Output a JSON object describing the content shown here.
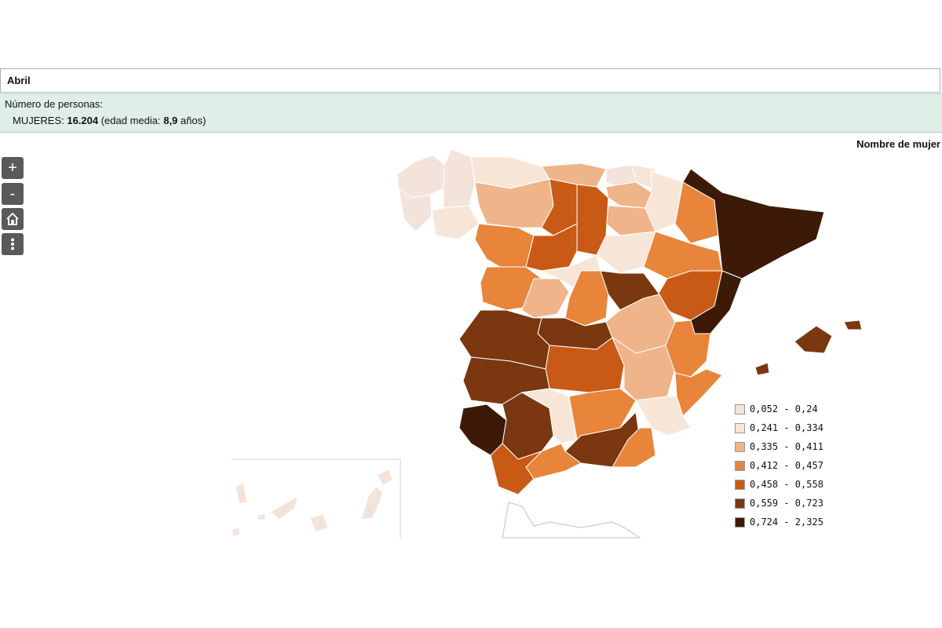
{
  "name_bar": {
    "name": "Abril"
  },
  "info": {
    "title": "Número de personas:",
    "women_label": "MUJERES: ",
    "women_count": "16.204",
    "age_prefix": " (edad media: ",
    "age_value": "8,9",
    "age_suffix": " años)"
  },
  "map_title": "Nombre de mujer",
  "controls": {
    "zoom_in": "+",
    "zoom_out": "-",
    "home": "home-icon",
    "menu": "more-vertical-icon"
  },
  "legend": [
    {
      "label": "0,052 - 0,24",
      "color": "#f3e3da"
    },
    {
      "label": "0,241 - 0,334",
      "color": "#f7e6d8"
    },
    {
      "label": "0,335 - 0,411",
      "color": "#efb48a"
    },
    {
      "label": "0,412 - 0,457",
      "color": "#e8853a"
    },
    {
      "label": "0,458 - 0,558",
      "color": "#c95a16"
    },
    {
      "label": "0,559 - 0,723",
      "color": "#7a3710"
    },
    {
      "label": "0,724 - 2,325",
      "color": "#3d1a08"
    }
  ]
}
